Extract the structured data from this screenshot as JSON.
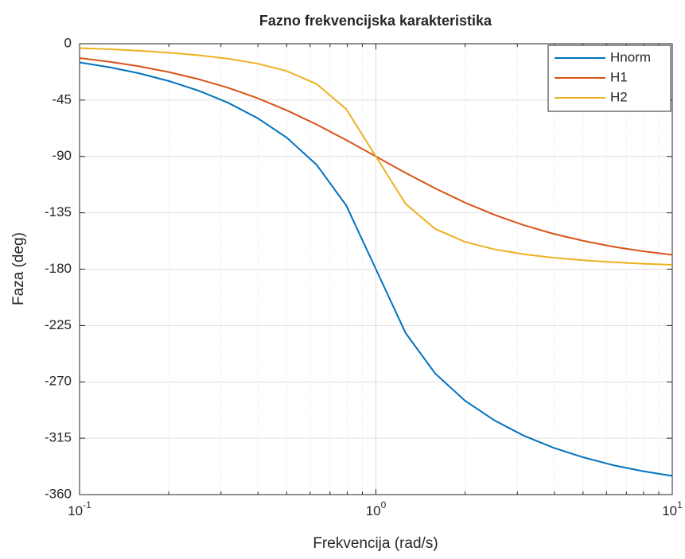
{
  "chart_data": {
    "type": "line",
    "title": "Fazno frekvencijska karakteristika",
    "xlabel": "Frekvencija  (rad/s)",
    "ylabel": "Faza (deg)",
    "x": [
      0.1,
      0.126,
      0.158,
      0.2,
      0.251,
      0.316,
      0.398,
      0.501,
      0.631,
      0.794,
      1,
      1.259,
      1.585,
      1.995,
      2.512,
      3.162,
      3.981,
      5.012,
      6.31,
      7.943,
      10
    ],
    "series": [
      {
        "name": "Hnorm",
        "color": "#0072BD",
        "values": [
          -14.89,
          -18.75,
          -23.51,
          -29.75,
          -37.31,
          -46.95,
          -59.24,
          -75.09,
          -96.67,
          -129.09,
          -180,
          -230.91,
          -263.33,
          -284.91,
          -300.76,
          -313.05,
          -322.69,
          -330.25,
          -336.49,
          -341.25,
          -345.11
        ]
      },
      {
        "name": "H1",
        "color": "#D95319",
        "values": [
          -11.42,
          -14.36,
          -17.96,
          -22.62,
          -28.18,
          -35.06,
          -43.4,
          -53.22,
          -64.5,
          -76.9,
          -90,
          -103.1,
          -115.5,
          -126.78,
          -136.6,
          -144.94,
          -151.82,
          -157.38,
          -162.04,
          -165.64,
          -168.58
        ]
      },
      {
        "name": "H2",
        "color": "#EDB120",
        "values": [
          -3.47,
          -4.39,
          -5.55,
          -7.13,
          -9.13,
          -11.89,
          -15.84,
          -21.87,
          -32.17,
          -52.19,
          -90,
          -127.81,
          -147.83,
          -158.13,
          -164.16,
          -168.11,
          -170.87,
          -172.87,
          -174.45,
          -175.61,
          -176.53
        ]
      }
    ],
    "xlim": [
      0.1,
      10
    ],
    "ylim": [
      -360,
      0
    ],
    "xticks": [
      {
        "value": 0.1,
        "label": "10",
        "exponent": "-1"
      },
      {
        "value": 1,
        "label": "10",
        "exponent": "0"
      },
      {
        "value": 10,
        "label": "10",
        "exponent": "1"
      }
    ],
    "yticks": [
      -360,
      -315,
      -270,
      -225,
      -180,
      -135,
      -90,
      -45,
      0
    ],
    "xscale": "log",
    "grid": true,
    "minor_grid": true,
    "legend": "northeast"
  }
}
